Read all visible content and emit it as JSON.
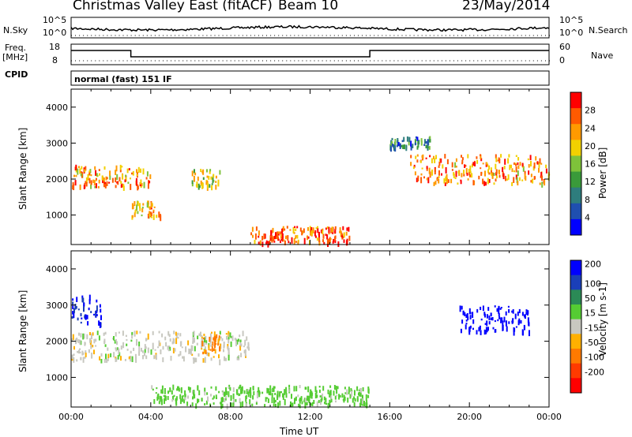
{
  "header": {
    "station": "Christmas Valley East (fitACF)",
    "beam": "Beam 10",
    "date": "23/May/2014"
  },
  "panels": {
    "nsky_label": "N.Sky",
    "nsearch_label": "N.Search",
    "freq_label": "Freq.",
    "freq_unit": "[MHz]",
    "nave_label": "Nave",
    "cpid_label": "CPID",
    "cpid_text": "normal (fast) 151 IF",
    "noise_ticks": [
      "10^5",
      "10^0"
    ],
    "noise_ticks_right": [
      "10^5",
      "10^0"
    ],
    "freq_ticks": [
      "18",
      "8"
    ],
    "nave_ticks": [
      "60",
      "0"
    ]
  },
  "chart_data": [
    {
      "type": "heatmap",
      "title": "",
      "xlabel": "",
      "ylabel": "Slant Range [km]",
      "ylim": [
        180,
        4500
      ],
      "xlim": [
        "00:00",
        "24:00"
      ],
      "y_ticks": [
        1000,
        2000,
        3000,
        4000
      ],
      "colorbar": {
        "label": "Power [dB]",
        "ticks": [
          4,
          8,
          12,
          16,
          20,
          24,
          28
        ],
        "range": [
          0,
          32
        ]
      },
      "echo_regions": [
        {
          "t": [
            0,
            4
          ],
          "range_km": [
            1800,
            2400
          ],
          "value_db": 24
        },
        {
          "t": [
            3,
            4.5
          ],
          "range_km": [
            950,
            1400
          ],
          "value_db": 22
        },
        {
          "t": [
            6,
            7.5
          ],
          "range_km": [
            1800,
            2300
          ],
          "value_db": 18
        },
        {
          "t": [
            9,
            14
          ],
          "range_km": [
            250,
            700
          ],
          "value_db": 26
        },
        {
          "t": [
            17,
            24
          ],
          "range_km": [
            1900,
            2700
          ],
          "value_db": 24
        },
        {
          "t": [
            16,
            18
          ],
          "range_km": [
            2900,
            3200
          ],
          "value_db": 10
        }
      ]
    },
    {
      "type": "heatmap",
      "title": "",
      "xlabel": "Time UT",
      "ylabel": "Slant Range [km]",
      "ylim": [
        180,
        4500
      ],
      "xlim": [
        "00:00",
        "24:00"
      ],
      "x_ticks": [
        "00:00",
        "04:00",
        "08:00",
        "12:00",
        "16:00",
        "20:00",
        "00:00"
      ],
      "y_ticks": [
        1000,
        2000,
        3000,
        4000
      ],
      "colorbar": {
        "label": "Velocity [m s-1]",
        "ticks": [
          200,
          100,
          50,
          15,
          -15,
          -50,
          -100,
          -200
        ]
      },
      "echo_regions": [
        {
          "t": [
            0,
            1.5
          ],
          "range_km": [
            2500,
            3300
          ],
          "value_ms": 200
        },
        {
          "t": [
            0,
            9
          ],
          "range_km": [
            1500,
            2300
          ],
          "value_ms": 0
        },
        {
          "t": [
            6.5,
            7.5
          ],
          "range_km": [
            1700,
            2300
          ],
          "value_ms": -60
        },
        {
          "t": [
            19.5,
            23
          ],
          "range_km": [
            2300,
            3000
          ],
          "value_ms": 220
        },
        {
          "t": [
            4,
            15
          ],
          "range_km": [
            250,
            800
          ],
          "value_ms": 30
        }
      ]
    }
  ],
  "colors": {
    "power_scale": [
      "#0000ff",
      "#1f4fb0",
      "#2e7d7d",
      "#3a9a3a",
      "#7ec23a",
      "#f2d000",
      "#ff9a00",
      "#ff5a00",
      "#ff0000"
    ],
    "velocity_scale": [
      "#0000ff",
      "#1a3fb8",
      "#2b8a56",
      "#55cc33",
      "#c8c8c0",
      "#ffb000",
      "#ff7a00",
      "#ff3a00",
      "#ff0000"
    ]
  }
}
